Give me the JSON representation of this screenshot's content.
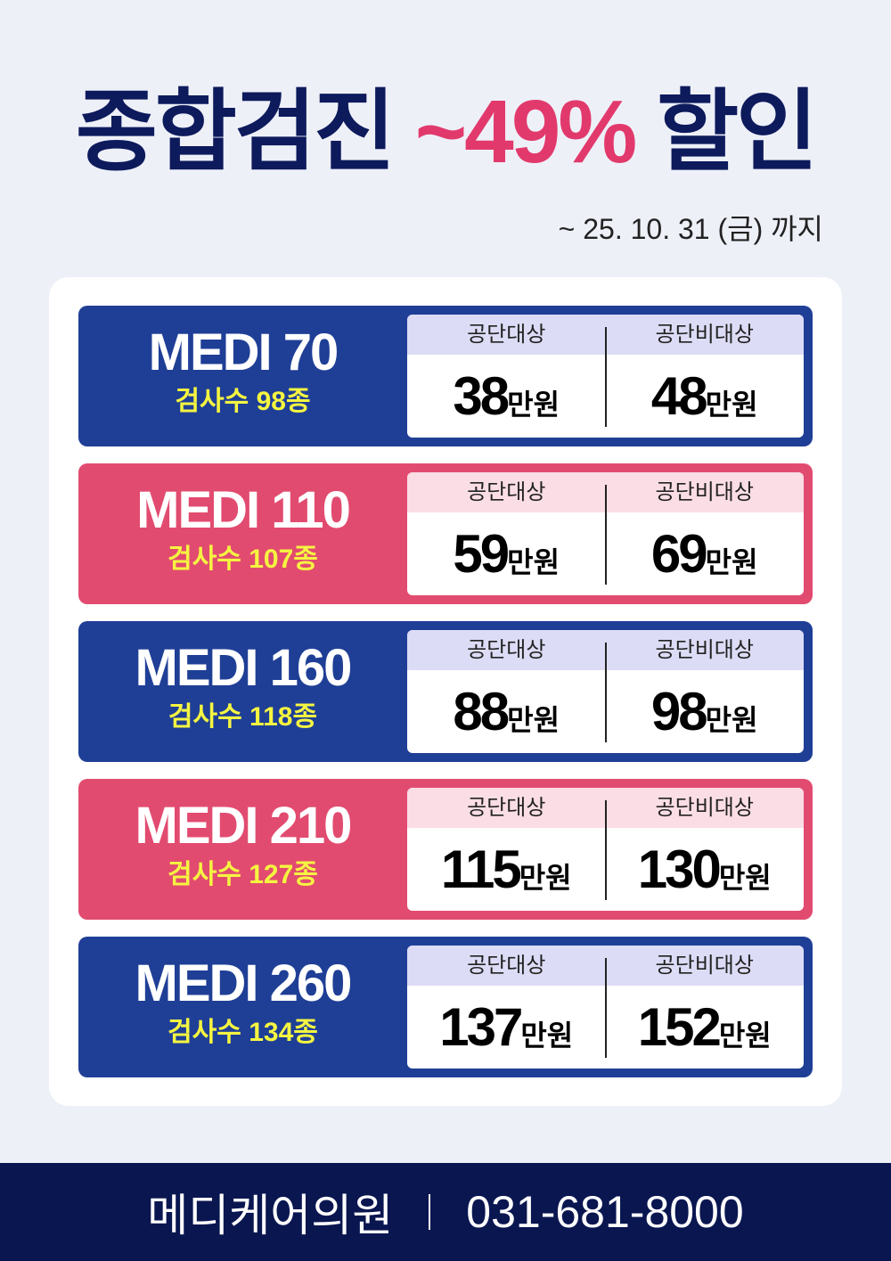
{
  "title": {
    "main": "종합검진",
    "highlight": "~49%",
    "suffix": "할인"
  },
  "date": "~ 25. 10. 31 (금) 까지",
  "header_labels": {
    "public": "공단대상",
    "nonpublic": "공단비대상"
  },
  "unit": "만원",
  "colors": {
    "blue": "#1f3f96",
    "pink": "#e24b70",
    "navy": "#0d1a5c",
    "accent": "#e2396c",
    "yellow": "#f5f541"
  },
  "plans": [
    {
      "name": "MEDI 70",
      "count": "검사수 98종",
      "public": "38",
      "nonpublic": "48",
      "color": "blue"
    },
    {
      "name": "MEDI 110",
      "count": "검사수 107종",
      "public": "59",
      "nonpublic": "69",
      "color": "pink"
    },
    {
      "name": "MEDI 160",
      "count": "검사수 118종",
      "public": "88",
      "nonpublic": "98",
      "color": "blue"
    },
    {
      "name": "MEDI 210",
      "count": "검사수 127종",
      "public": "115",
      "nonpublic": "130",
      "color": "pink"
    },
    {
      "name": "MEDI 260",
      "count": "검사수 134종",
      "public": "137",
      "nonpublic": "152",
      "color": "blue"
    }
  ],
  "footer": {
    "clinic": "메디케어의원",
    "phone": "031-681-8000"
  }
}
